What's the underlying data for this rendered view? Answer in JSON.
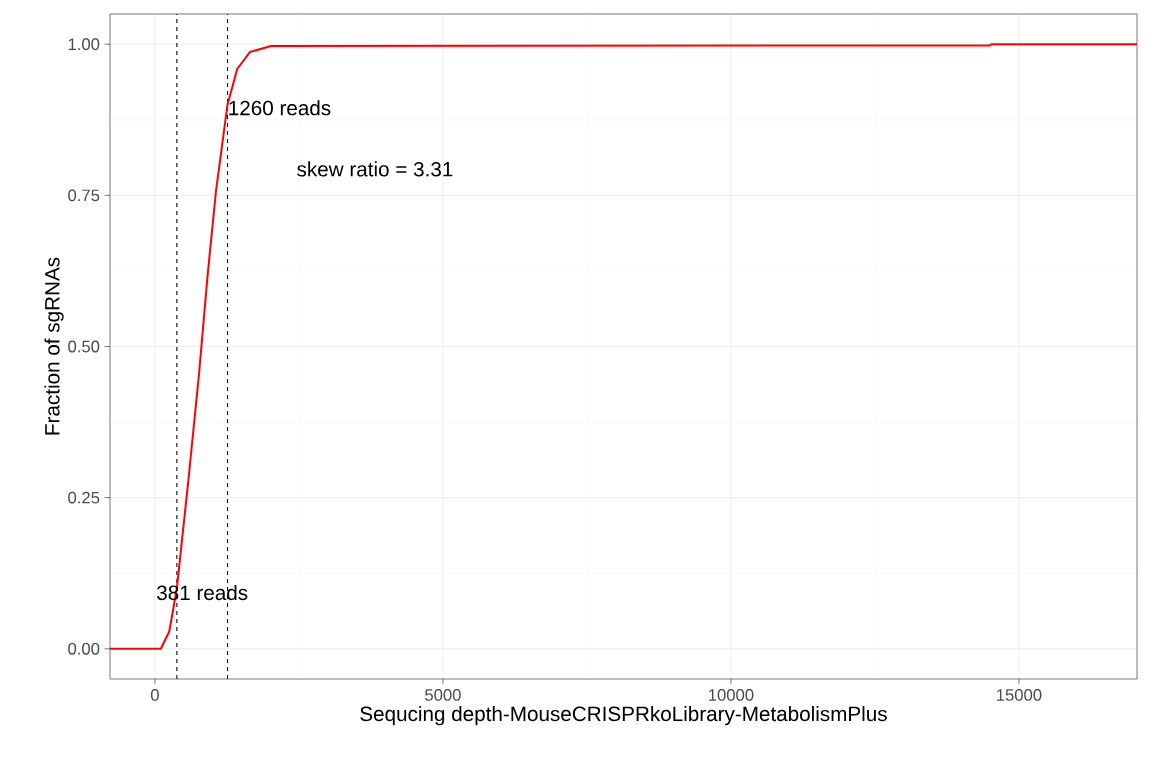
{
  "chart_data": {
    "type": "line",
    "xlabel": "Sequcing depth-MouseCRISPRkoLibrary-MetabolismPlus",
    "ylabel": "Fraction of sgRNAs",
    "x": [
      -780,
      104,
      250,
      381,
      582,
      766,
      913,
      1059,
      1260,
      1429,
      1649,
      2014,
      14500,
      14520,
      17050
    ],
    "series": [
      {
        "color": "#ff0000",
        "values": [
          0.0,
          0.0,
          0.029,
          0.1,
          0.28,
          0.455,
          0.616,
          0.756,
          0.9,
          0.959,
          0.987,
          0.997,
          0.998,
          1.0,
          1.0
        ]
      }
    ],
    "xlim": [
      -780,
      17050
    ],
    "ylim": [
      -0.05,
      1.05
    ],
    "xticks": [
      0,
      5000,
      10000,
      15000
    ],
    "yticks": [
      {
        "value": 0,
        "label": "0.00"
      },
      {
        "value": 0.25,
        "label": "0.25"
      },
      {
        "value": 0.5,
        "label": "0.50"
      },
      {
        "value": 0.75,
        "label": "0.75"
      },
      {
        "value": 1,
        "label": "1.00"
      }
    ],
    "ref_lines": [
      {
        "axis": "x",
        "value": 381,
        "label": "381 reads",
        "color": "#000000",
        "line_style": "dashed"
      },
      {
        "axis": "x",
        "value": 1260,
        "label": "1260 reads",
        "color": "#000000",
        "line_style": "dashed"
      }
    ],
    "annotations": [
      "skew ratio = 3.31"
    ],
    "grid": true,
    "marker": "none",
    "line_style": "solid"
  }
}
